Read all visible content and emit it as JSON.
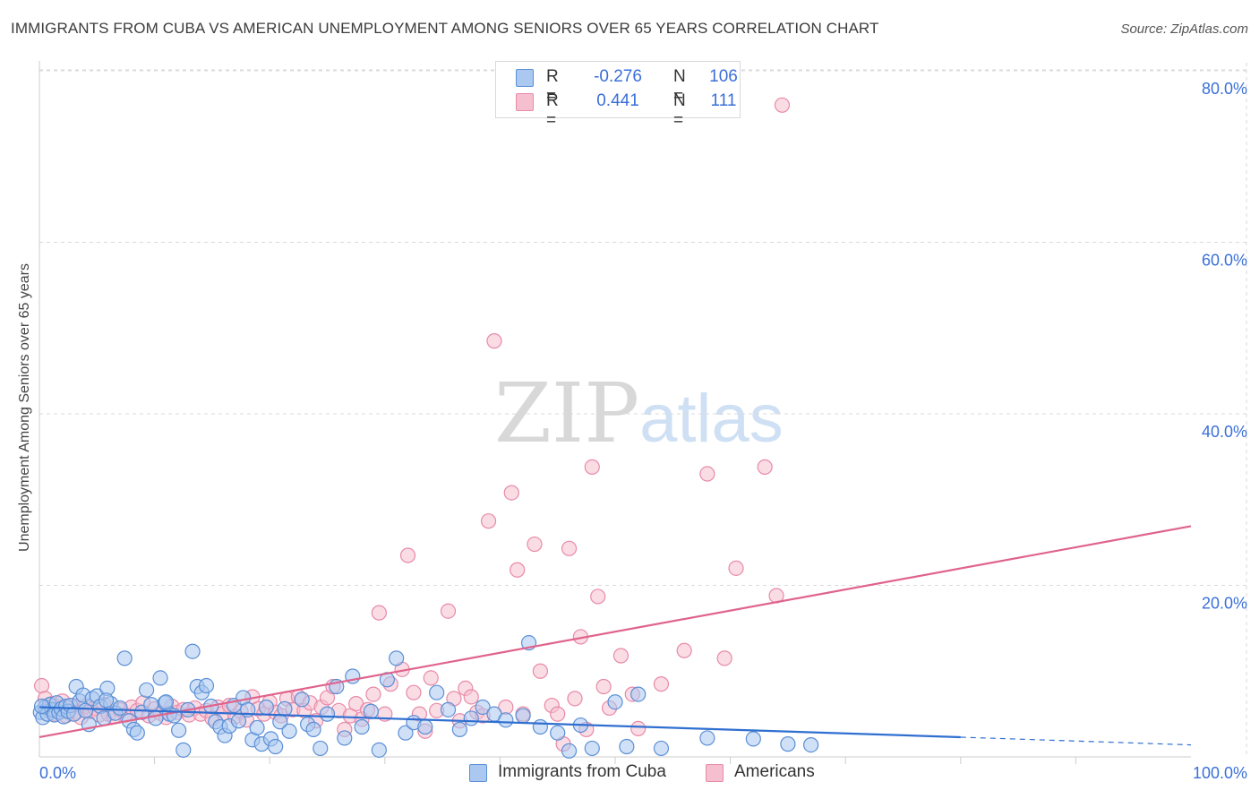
{
  "title": "IMMIGRANTS FROM CUBA VS AMERICAN UNEMPLOYMENT AMONG SENIORS OVER 65 YEARS CORRELATION CHART",
  "source": "Source: ZipAtlas.com",
  "watermark": {
    "zip": "ZIP",
    "atlas": "atlas"
  },
  "colors": {
    "blue_fill": "#aac8f0",
    "blue_stroke": "#5b8fd6",
    "blue_line": "#2f6fd0",
    "pink_fill": "#f6bfd0",
    "pink_stroke": "#e88aa8",
    "pink_line": "#e0638c",
    "grid": "#d9d9d9",
    "axis_text": "#3a6fd8"
  },
  "legend": {
    "r_label": "R =",
    "n_label": "N =",
    "blue": {
      "r": "-0.276",
      "n": "106"
    },
    "pink": {
      "r": "0.441",
      "n": "111"
    }
  },
  "chart_data": {
    "type": "scatter",
    "title": "IMMIGRANTS FROM CUBA VS AMERICAN UNEMPLOYMENT AMONG SENIORS OVER 65 YEARS CORRELATION CHART",
    "xlabel": "",
    "ylabel": "Unemployment Among Seniors over 65 years",
    "xlim": [
      0,
      100
    ],
    "ylim": [
      0,
      82
    ],
    "x_tick_labels": [
      "0.0%",
      "100.0%"
    ],
    "y_ticks": [
      20,
      40,
      60,
      80
    ],
    "y_tick_labels": [
      "20.0%",
      "40.0%",
      "60.0%",
      "80.0%"
    ],
    "grid": true,
    "series": [
      {
        "name": "Immigrants from Cuba",
        "color": "blue",
        "r": -0.276,
        "n": 106,
        "trend": {
          "x": [
            0,
            80
          ],
          "y": [
            5.8,
            2.3
          ],
          "dashed_to": [
            100,
            1.4
          ]
        },
        "points": [
          [
            0.1,
            5.2
          ],
          [
            0.3,
            4.6
          ],
          [
            0.5,
            5.8
          ],
          [
            0.7,
            5.0
          ],
          [
            0.9,
            6.1
          ],
          [
            1.1,
            5.5
          ],
          [
            1.3,
            4.9
          ],
          [
            1.5,
            6.3
          ],
          [
            1.7,
            5.2
          ],
          [
            1.9,
            5.6
          ],
          [
            2.1,
            4.7
          ],
          [
            2.3,
            5.9
          ],
          [
            2.5,
            5.3
          ],
          [
            2.7,
            6.0
          ],
          [
            3.0,
            5.0
          ],
          [
            3.2,
            8.2
          ],
          [
            3.5,
            6.5
          ],
          [
            3.8,
            7.2
          ],
          [
            4.0,
            5.4
          ],
          [
            4.3,
            3.8
          ],
          [
            4.6,
            6.8
          ],
          [
            5.0,
            7.1
          ],
          [
            5.3,
            5.9
          ],
          [
            5.6,
            4.5
          ],
          [
            5.9,
            8.0
          ],
          [
            6.2,
            6.2
          ],
          [
            6.6,
            5.1
          ],
          [
            7.0,
            5.7
          ],
          [
            7.4,
            11.5
          ],
          [
            7.8,
            4.2
          ],
          [
            8.2,
            3.2
          ],
          [
            8.5,
            2.8
          ],
          [
            8.9,
            5.2
          ],
          [
            9.3,
            7.8
          ],
          [
            9.7,
            6.1
          ],
          [
            10.1,
            4.5
          ],
          [
            10.5,
            9.2
          ],
          [
            10.9,
            6.3
          ],
          [
            11.3,
            5.0
          ],
          [
            11.7,
            4.8
          ],
          [
            12.1,
            3.1
          ],
          [
            12.5,
            0.8
          ],
          [
            12.9,
            5.5
          ],
          [
            13.3,
            12.3
          ],
          [
            13.7,
            8.2
          ],
          [
            14.1,
            7.5
          ],
          [
            14.5,
            8.3
          ],
          [
            14.9,
            5.9
          ],
          [
            15.3,
            4.1
          ],
          [
            15.7,
            3.5
          ],
          [
            16.1,
            2.5
          ],
          [
            16.5,
            3.6
          ],
          [
            16.9,
            6.0
          ],
          [
            17.3,
            4.2
          ],
          [
            17.7,
            6.9
          ],
          [
            18.1,
            5.5
          ],
          [
            18.5,
            2.0
          ],
          [
            18.9,
            3.4
          ],
          [
            19.3,
            1.5
          ],
          [
            19.7,
            5.8
          ],
          [
            20.1,
            2.1
          ],
          [
            20.5,
            1.2
          ],
          [
            20.9,
            4.1
          ],
          [
            21.3,
            5.6
          ],
          [
            21.7,
            3.0
          ],
          [
            22.8,
            6.7
          ],
          [
            23.3,
            3.8
          ],
          [
            23.8,
            3.2
          ],
          [
            24.4,
            1.0
          ],
          [
            25.0,
            5.0
          ],
          [
            25.8,
            8.2
          ],
          [
            26.5,
            2.2
          ],
          [
            27.2,
            9.4
          ],
          [
            28.0,
            3.5
          ],
          [
            28.8,
            5.3
          ],
          [
            29.5,
            0.8
          ],
          [
            30.2,
            9.0
          ],
          [
            31.0,
            11.5
          ],
          [
            31.8,
            2.8
          ],
          [
            32.5,
            4.0
          ],
          [
            33.5,
            3.5
          ],
          [
            34.5,
            7.5
          ],
          [
            35.5,
            5.5
          ],
          [
            36.5,
            3.2
          ],
          [
            37.5,
            4.5
          ],
          [
            38.5,
            5.8
          ],
          [
            39.5,
            5.0
          ],
          [
            40.5,
            4.3
          ],
          [
            42.0,
            4.8
          ],
          [
            42.5,
            13.3
          ],
          [
            43.5,
            3.5
          ],
          [
            45.0,
            2.8
          ],
          [
            46.0,
            0.7
          ],
          [
            47.0,
            3.7
          ],
          [
            48.0,
            1.0
          ],
          [
            50.0,
            6.4
          ],
          [
            51.0,
            1.2
          ],
          [
            52.0,
            7.3
          ],
          [
            54.0,
            1.0
          ],
          [
            58.0,
            2.2
          ],
          [
            62.0,
            2.1
          ],
          [
            65.0,
            1.5
          ],
          [
            67.0,
            1.4
          ],
          [
            5.8,
            6.6
          ],
          [
            11.0,
            6.4
          ],
          [
            0.2,
            5.9
          ]
        ]
      },
      {
        "name": "Americans",
        "color": "pink",
        "r": 0.441,
        "n": 111,
        "trend": {
          "x": [
            0,
            100
          ],
          "y": [
            2.3,
            26.9
          ]
        },
        "points": [
          [
            0.2,
            8.3
          ],
          [
            0.5,
            6.8
          ],
          [
            0.8,
            5.5
          ],
          [
            1.1,
            6.2
          ],
          [
            1.4,
            5.0
          ],
          [
            1.7,
            5.8
          ],
          [
            2.0,
            6.5
          ],
          [
            2.3,
            4.8
          ],
          [
            2.6,
            5.4
          ],
          [
            2.9,
            6.0
          ],
          [
            3.2,
            5.2
          ],
          [
            3.6,
            4.6
          ],
          [
            4.0,
            5.9
          ],
          [
            4.4,
            5.3
          ],
          [
            4.8,
            5.7
          ],
          [
            5.2,
            4.9
          ],
          [
            5.6,
            6.1
          ],
          [
            6.0,
            5.0
          ],
          [
            6.5,
            4.7
          ],
          [
            7.0,
            5.5
          ],
          [
            7.5,
            4.9
          ],
          [
            8.0,
            5.8
          ],
          [
            8.5,
            5.4
          ],
          [
            9.0,
            6.3
          ],
          [
            9.5,
            4.8
          ],
          [
            10.0,
            5.6
          ],
          [
            10.5,
            5.1
          ],
          [
            11.0,
            4.6
          ],
          [
            11.5,
            5.9
          ],
          [
            12.0,
            5.2
          ],
          [
            12.5,
            5.5
          ],
          [
            13.0,
            4.9
          ],
          [
            13.5,
            5.7
          ],
          [
            14.0,
            5.0
          ],
          [
            14.5,
            5.4
          ],
          [
            15.0,
            4.5
          ],
          [
            15.5,
            5.8
          ],
          [
            16.0,
            5.1
          ],
          [
            16.5,
            6.0
          ],
          [
            17.0,
            4.7
          ],
          [
            17.5,
            5.3
          ],
          [
            18.0,
            4.3
          ],
          [
            18.5,
            7.0
          ],
          [
            19.0,
            5.6
          ],
          [
            19.5,
            5.0
          ],
          [
            20.0,
            6.4
          ],
          [
            20.5,
            5.2
          ],
          [
            21.0,
            4.8
          ],
          [
            21.5,
            6.8
          ],
          [
            22.0,
            5.5
          ],
          [
            22.5,
            7.0
          ],
          [
            23.0,
            5.4
          ],
          [
            23.5,
            6.3
          ],
          [
            24.0,
            4.2
          ],
          [
            24.5,
            5.8
          ],
          [
            25.0,
            6.9
          ],
          [
            25.5,
            8.2
          ],
          [
            26.0,
            5.4
          ],
          [
            26.5,
            3.2
          ],
          [
            27.0,
            4.8
          ],
          [
            27.5,
            6.2
          ],
          [
            28.0,
            4.4
          ],
          [
            28.5,
            5.5
          ],
          [
            29.0,
            7.3
          ],
          [
            29.5,
            16.8
          ],
          [
            30.0,
            5.0
          ],
          [
            30.5,
            8.5
          ],
          [
            31.5,
            10.2
          ],
          [
            32.0,
            23.5
          ],
          [
            32.5,
            7.5
          ],
          [
            33.0,
            5.0
          ],
          [
            33.5,
            3.0
          ],
          [
            34.0,
            9.2
          ],
          [
            34.5,
            5.4
          ],
          [
            35.5,
            17.0
          ],
          [
            36.0,
            6.8
          ],
          [
            36.5,
            4.2
          ],
          [
            37.0,
            8.0
          ],
          [
            37.5,
            7.0
          ],
          [
            38.0,
            5.2
          ],
          [
            38.5,
            4.8
          ],
          [
            39.0,
            27.5
          ],
          [
            39.5,
            48.5
          ],
          [
            40.5,
            5.8
          ],
          [
            41.0,
            30.8
          ],
          [
            41.5,
            21.8
          ],
          [
            42.0,
            5.0
          ],
          [
            43.0,
            24.8
          ],
          [
            43.5,
            10.0
          ],
          [
            44.5,
            6.0
          ],
          [
            45.0,
            5.0
          ],
          [
            45.5,
            1.5
          ],
          [
            46.0,
            24.3
          ],
          [
            46.5,
            6.8
          ],
          [
            47.0,
            14.0
          ],
          [
            47.5,
            3.2
          ],
          [
            48.0,
            33.8
          ],
          [
            48.5,
            18.7
          ],
          [
            49.0,
            8.2
          ],
          [
            49.5,
            5.7
          ],
          [
            50.5,
            11.8
          ],
          [
            51.5,
            7.3
          ],
          [
            52.0,
            3.3
          ],
          [
            54.0,
            8.5
          ],
          [
            56.0,
            12.4
          ],
          [
            58.0,
            33.0
          ],
          [
            59.5,
            11.5
          ],
          [
            60.5,
            22.0
          ],
          [
            63.0,
            33.8
          ],
          [
            64.0,
            18.8
          ],
          [
            64.5,
            76.0
          ]
        ]
      }
    ]
  },
  "bottom_legend": {
    "blue_label": "Immigrants from Cuba",
    "pink_label": "Americans"
  }
}
